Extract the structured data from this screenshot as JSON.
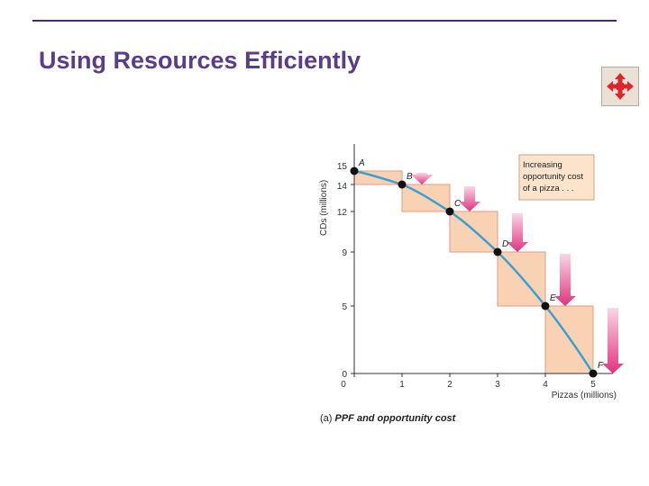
{
  "slide": {
    "title": "Using Resources Efficiently",
    "move_icon_color": "#e0242f"
  },
  "figure": {
    "caption_prefix": "(a) ",
    "caption_body": "PPF and opportunity cost"
  },
  "chart_data": {
    "type": "line",
    "xlabel": "Pizzas (millions)",
    "ylabel": "CDs (millions)",
    "xlim": [
      0,
      5
    ],
    "ylim": [
      0,
      15
    ],
    "x_ticks": [
      "0",
      "1",
      "2",
      "3",
      "4",
      "5"
    ],
    "y_ticks": [
      "15",
      "14",
      "12",
      "9",
      "5",
      "0"
    ],
    "y_tick_values": [
      15,
      14,
      12,
      9,
      5,
      0
    ],
    "points": [
      {
        "label": "A",
        "x": 0,
        "y": 15
      },
      {
        "label": "B",
        "x": 1,
        "y": 14
      },
      {
        "label": "C",
        "x": 2,
        "y": 12
      },
      {
        "label": "D",
        "x": 3,
        "y": 9
      },
      {
        "label": "E",
        "x": 4,
        "y": 5
      },
      {
        "label": "F",
        "x": 5,
        "y": 0
      }
    ],
    "annotation_lines": [
      "Increasing",
      "opportunity cost",
      "of a pizza . . ."
    ],
    "colors": {
      "curve": "#3aa0d2",
      "step_fill": "#f9d2b4",
      "step_stroke": "#e29a86",
      "arrow_dark": "#e0337f",
      "arrow_light": "#fbd6e6",
      "annotation_fill": "#fbe3cc",
      "annotation_stroke": "#d7a07c",
      "axis": "#333333"
    }
  }
}
